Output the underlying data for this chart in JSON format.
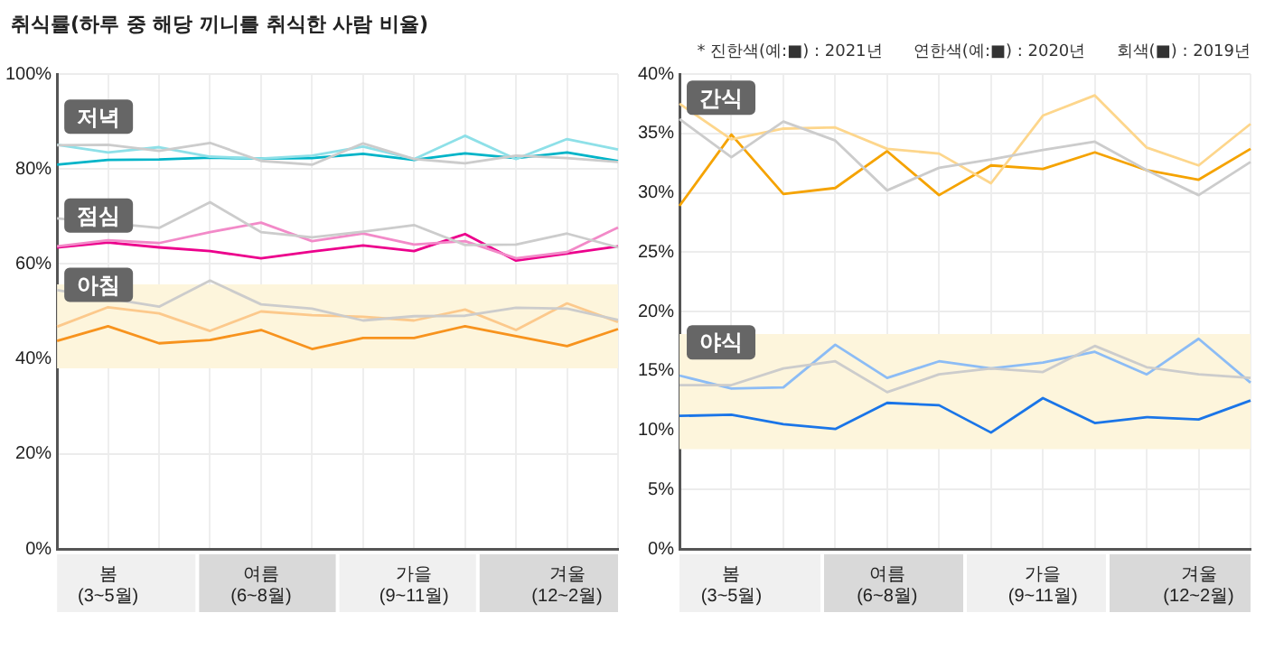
{
  "chart_data": [
    {
      "type": "line",
      "title": "취식률(하루 중 해당 끼니를 취식한 사람 비율)",
      "categories": [
        null,
        "봄\n(3~5월)",
        null,
        null,
        "여름\n(6~8월)",
        null,
        null,
        "가을\n(9~11월)",
        null,
        null,
        "겨울\n(12~2월)",
        null
      ],
      "ylim": [
        0,
        100
      ],
      "yticks": [
        {
          "value": 0,
          "label": "0%"
        },
        {
          "value": 20,
          "label": "20%"
        },
        {
          "value": 40,
          "label": "40%"
        },
        {
          "value": 60,
          "label": "60%"
        },
        {
          "value": 80,
          "label": "80%"
        },
        {
          "value": 100,
          "label": "100%"
        }
      ],
      "grid": true,
      "bands": [
        {
          "axis": "y",
          "from": 38,
          "to": 55.7,
          "color": "#fdf5dc"
        }
      ],
      "annotations": [
        "저녁",
        "점심",
        "아침"
      ],
      "series": [
        {
          "color": "#cccccc",
          "values": [
            85.0,
            85.1,
            83.8,
            85.5,
            81.7,
            80.9,
            85.4,
            82.1,
            81.2,
            82.8,
            82.3,
            81.5
          ]
        },
        {
          "color": "#8ee0e8",
          "values": [
            85.1,
            83.5,
            84.6,
            82.6,
            82.2,
            82.8,
            84.7,
            82.1,
            87.0,
            82.1,
            86.3,
            84.1
          ]
        },
        {
          "color": "#00b4c8",
          "values": [
            80.9,
            81.9,
            82.0,
            82.4,
            82.2,
            82.3,
            83.2,
            81.9,
            83.3,
            82.3,
            83.5,
            81.7
          ]
        },
        {
          "color": "#cccccc",
          "values": [
            69.6,
            null,
            67.6,
            73.0,
            66.7,
            65.6,
            66.8,
            68.2,
            64.0,
            64.1,
            66.4,
            63.5
          ]
        },
        {
          "color": "#f28ac8",
          "values": [
            63.7,
            65.0,
            64.4,
            66.7,
            68.7,
            64.8,
            66.4,
            64.1,
            64.8,
            61.2,
            62.5,
            67.7
          ]
        },
        {
          "color": "#ec008c",
          "values": [
            63.5,
            64.5,
            63.5,
            62.7,
            61.2,
            62.6,
            63.9,
            62.7,
            66.3,
            60.7,
            62.2,
            63.7
          ]
        },
        {
          "color": "#cccccc",
          "values": [
            54.5,
            null,
            51.0,
            56.5,
            51.5,
            50.6,
            48.1,
            49.0,
            49.1,
            50.8,
            50.6,
            48.2
          ]
        },
        {
          "color": "#fcc98c",
          "values": [
            46.8,
            50.9,
            49.6,
            45.9,
            50.0,
            49.2,
            48.9,
            48.1,
            50.4,
            46.1,
            51.7,
            47.8
          ]
        },
        {
          "color": "#f7931e",
          "values": [
            43.8,
            46.9,
            43.3,
            44.0,
            46.1,
            42.1,
            44.4,
            44.4,
            46.9,
            44.8,
            42.7,
            46.3
          ]
        }
      ]
    },
    {
      "type": "line",
      "categories": [
        null,
        "봄\n(3~5월)",
        null,
        null,
        "여름\n(6~8월)",
        null,
        null,
        "가을\n(9~11월)",
        null,
        null,
        "겨울\n(12~2월)",
        null
      ],
      "ylim": [
        0,
        40
      ],
      "yticks": [
        {
          "value": 0,
          "label": "0%"
        },
        {
          "value": 5,
          "label": "5%"
        },
        {
          "value": 10,
          "label": "10%"
        },
        {
          "value": 15,
          "label": "15%"
        },
        {
          "value": 20,
          "label": "20%"
        },
        {
          "value": 25,
          "label": "25%"
        },
        {
          "value": 30,
          "label": "30%"
        },
        {
          "value": 35,
          "label": "35%"
        },
        {
          "value": 40,
          "label": "40%"
        }
      ],
      "grid": true,
      "bands": [
        {
          "axis": "y",
          "from": 8.4,
          "to": 18.1,
          "color": "#fdf5dc"
        }
      ],
      "annotations": [
        "간식",
        "야식",
        "* 진한색(예:■) : 2021년      연한색(예:■) : 2020년      회색(■) : 2019년"
      ],
      "series": [
        {
          "color": "#cccccc",
          "values": [
            36.2,
            33.0,
            36.0,
            34.4,
            30.2,
            32.1,
            32.8,
            33.6,
            34.3,
            31.9,
            29.8,
            32.6
          ]
        },
        {
          "color": "#fdd68c",
          "values": [
            37.5,
            34.5,
            35.4,
            35.5,
            33.7,
            33.3,
            30.8,
            36.5,
            38.2,
            33.8,
            32.3,
            35.8
          ]
        },
        {
          "color": "#f5a300",
          "values": [
            28.9,
            34.9,
            29.9,
            30.4,
            33.5,
            29.8,
            32.3,
            32.0,
            33.4,
            31.9,
            31.1,
            33.7
          ]
        },
        {
          "color": "#cccccc",
          "values": [
            13.8,
            13.8,
            15.2,
            15.8,
            13.2,
            14.7,
            15.2,
            14.9,
            17.1,
            15.3,
            14.7,
            14.4
          ]
        },
        {
          "color": "#8cbcf5",
          "values": [
            14.6,
            13.5,
            13.6,
            17.2,
            14.4,
            15.8,
            15.2,
            15.7,
            16.6,
            14.7,
            17.7,
            14.0
          ]
        },
        {
          "color": "#1a75e8",
          "values": [
            11.2,
            11.3,
            10.5,
            10.1,
            12.3,
            12.1,
            9.8,
            12.7,
            10.6,
            11.1,
            10.9,
            12.5
          ]
        }
      ]
    }
  ]
}
